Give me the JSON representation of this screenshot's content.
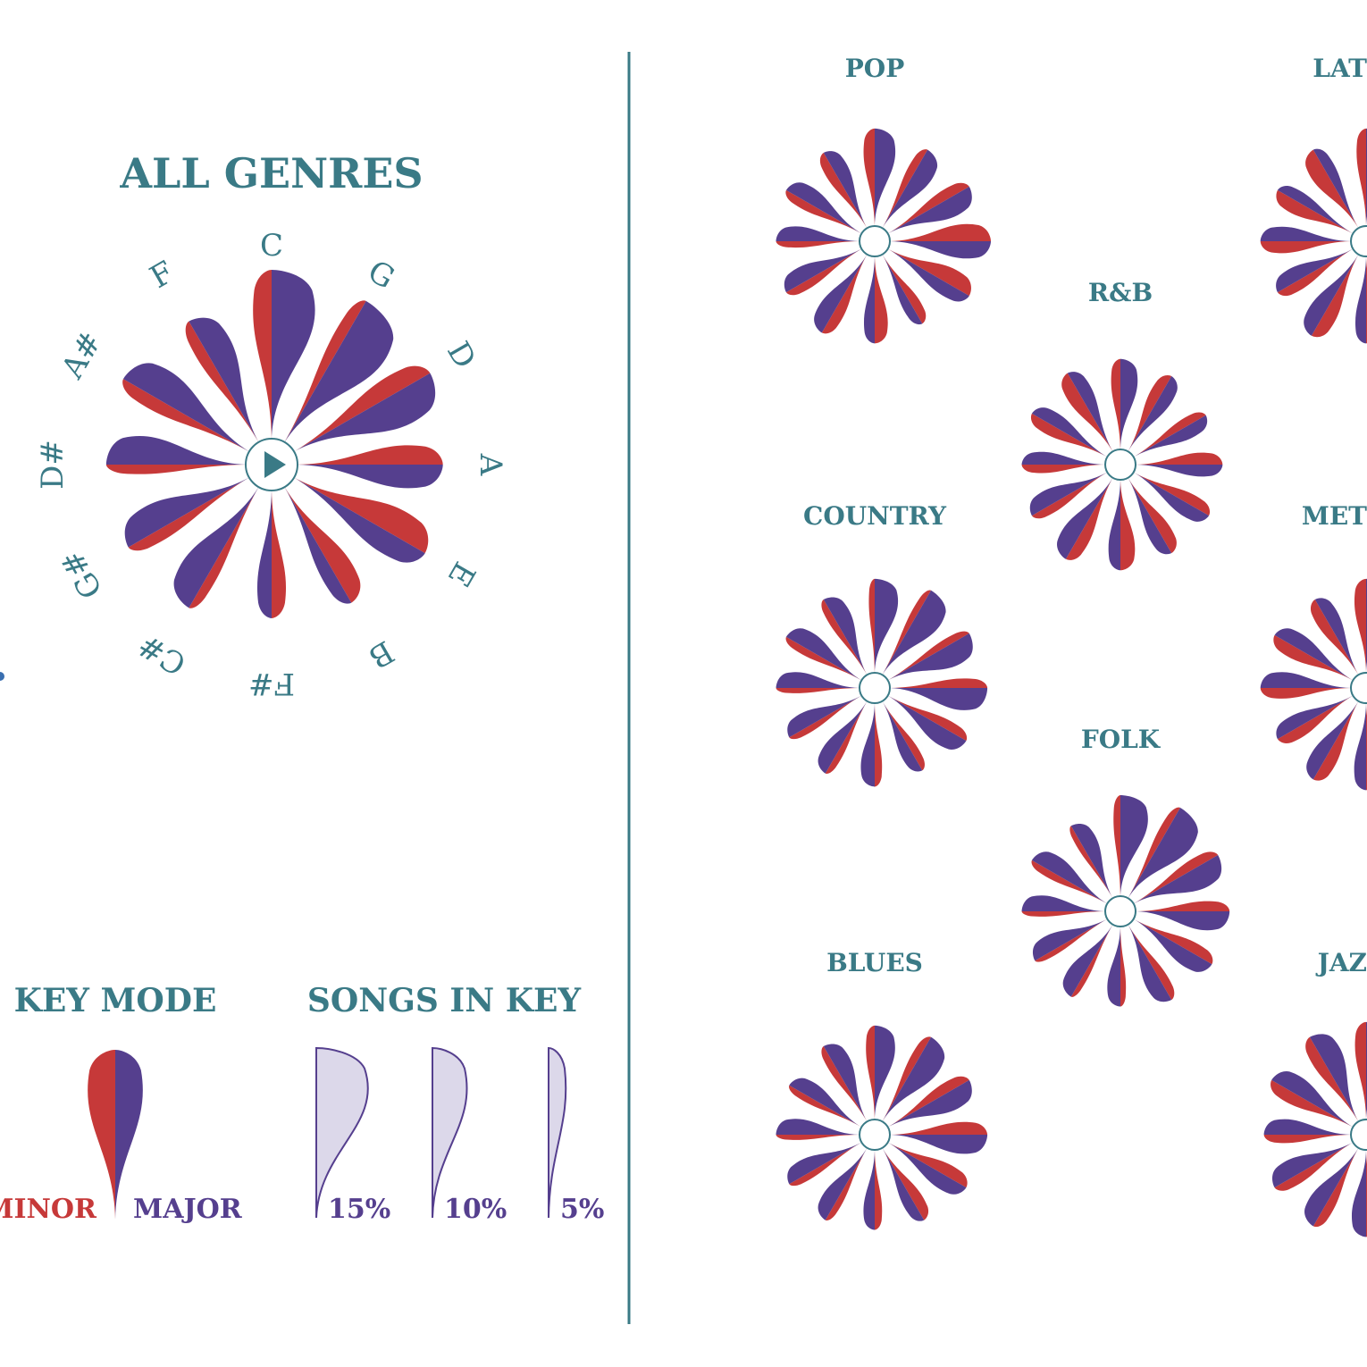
{
  "colors": {
    "teal": "#3a7a86",
    "minor": "#c63939",
    "major": "#553f8e",
    "legend_fill": "#dcd8ea",
    "divider": "#3a7a86"
  },
  "main": {
    "title": "ALL GENRES",
    "play_icon": "play-icon"
  },
  "legend": {
    "key_mode_title": "KEY MODE",
    "minor_label": "MINOR",
    "major_label": "MAJOR",
    "songs_in_key_title": "SONGS IN KEY",
    "sizes": [
      {
        "value": 15,
        "label": "15%"
      },
      {
        "value": 10,
        "label": "10%"
      },
      {
        "value": 5,
        "label": "5%"
      }
    ]
  },
  "genres": [
    {
      "label": "POP"
    },
    {
      "label": "LAT"
    },
    {
      "label": "R&B"
    },
    {
      "label": "COUNTRY"
    },
    {
      "label": "MET"
    },
    {
      "label": "FOLK"
    },
    {
      "label": "BLUES"
    },
    {
      "label": "JAZ"
    }
  ],
  "chart_data": [
    {
      "type": "radial-petal",
      "title": "ALL GENRES",
      "categories": [
        "C",
        "G",
        "D",
        "A",
        "E",
        "B",
        "F#",
        "C#",
        "G#",
        "D#",
        "A#",
        "F"
      ],
      "total_pct": [
        13,
        12,
        11,
        9,
        10,
        7,
        6,
        8,
        8,
        8,
        9,
        8
      ],
      "minor_share": [
        0.3,
        0.2,
        0.35,
        0.45,
        0.55,
        0.6,
        0.5,
        0.25,
        0.3,
        0.25,
        0.3,
        0.3
      ]
    },
    {
      "type": "radial-petal",
      "title": "POP",
      "categories": [
        "C",
        "G",
        "D",
        "A",
        "E",
        "B",
        "F#",
        "C#",
        "G#",
        "D#",
        "A#",
        "F"
      ],
      "total_pct": [
        12,
        10,
        11,
        13,
        11,
        7,
        9,
        10,
        9,
        8,
        9,
        9
      ],
      "minor_share": [
        0.35,
        0.3,
        0.35,
        0.5,
        0.55,
        0.5,
        0.55,
        0.4,
        0.35,
        0.3,
        0.35,
        0.4
      ]
    },
    {
      "type": "radial-petal",
      "title": "LAT",
      "categories": [
        "C",
        "G",
        "D",
        "A",
        "E",
        "B",
        "F#",
        "C#",
        "G#",
        "D#",
        "A#",
        "F"
      ],
      "total_pct": [
        12,
        10,
        10,
        10,
        11,
        8,
        9,
        11,
        9,
        10,
        9,
        10
      ],
      "minor_share": [
        0.3,
        0.35,
        0.35,
        0.5,
        0.5,
        0.5,
        0.55,
        0.45,
        0.4,
        0.45,
        0.55,
        0.6
      ]
    },
    {
      "type": "radial-petal",
      "title": "R&B",
      "categories": [
        "C",
        "G",
        "D",
        "A",
        "E",
        "B",
        "F#",
        "C#",
        "G#",
        "D#",
        "A#",
        "F"
      ],
      "total_pct": [
        10,
        9,
        8,
        9,
        9,
        9,
        10,
        11,
        9,
        8,
        9,
        10
      ],
      "minor_share": [
        0.35,
        0.45,
        0.4,
        0.5,
        0.45,
        0.5,
        0.55,
        0.4,
        0.35,
        0.4,
        0.45,
        0.5
      ]
    },
    {
      "type": "radial-petal",
      "title": "COUNTRY",
      "categories": [
        "C",
        "G",
        "D",
        "A",
        "E",
        "B",
        "F#",
        "C#",
        "G#",
        "D#",
        "A#",
        "F"
      ],
      "total_pct": [
        11,
        12,
        11,
        12,
        10,
        7,
        8,
        8,
        8,
        8,
        9,
        9
      ],
      "minor_share": [
        0.2,
        0.2,
        0.25,
        0.3,
        0.35,
        0.4,
        0.35,
        0.3,
        0.3,
        0.25,
        0.3,
        0.3
      ]
    },
    {
      "type": "radial-petal",
      "title": "MET",
      "categories": [
        "C",
        "G",
        "D",
        "A",
        "E",
        "B",
        "F#",
        "C#",
        "G#",
        "D#",
        "A#",
        "F"
      ],
      "total_pct": [
        11,
        10,
        10,
        11,
        12,
        9,
        9,
        10,
        9,
        10,
        10,
        9
      ],
      "minor_share": [
        0.4,
        0.4,
        0.45,
        0.5,
        0.55,
        0.5,
        0.5,
        0.45,
        0.45,
        0.4,
        0.45,
        0.45
      ]
    },
    {
      "type": "radial-petal",
      "title": "FOLK",
      "categories": [
        "C",
        "G",
        "D",
        "A",
        "E",
        "B",
        "F#",
        "C#",
        "G#",
        "D#",
        "A#",
        "F"
      ],
      "total_pct": [
        13,
        14,
        12,
        11,
        10,
        9,
        7,
        8,
        8,
        8,
        9,
        8
      ],
      "minor_share": [
        0.2,
        0.2,
        0.3,
        0.35,
        0.4,
        0.35,
        0.3,
        0.25,
        0.25,
        0.25,
        0.3,
        0.25
      ]
    },
    {
      "type": "radial-petal",
      "title": "BLUES",
      "categories": [
        "C",
        "G",
        "D",
        "A",
        "E",
        "B",
        "F#",
        "C#",
        "G#",
        "D#",
        "A#",
        "F"
      ],
      "total_pct": [
        11,
        12,
        11,
        12,
        10,
        8,
        7,
        8,
        8,
        8,
        8,
        9
      ],
      "minor_share": [
        0.3,
        0.25,
        0.35,
        0.4,
        0.45,
        0.5,
        0.4,
        0.3,
        0.3,
        0.25,
        0.3,
        0.3
      ]
    },
    {
      "type": "radial-petal",
      "title": "JAZ",
      "categories": [
        "C",
        "G",
        "D",
        "A",
        "E",
        "B",
        "F#",
        "C#",
        "G#",
        "D#",
        "A#",
        "F"
      ],
      "total_pct": [
        12,
        10,
        10,
        10,
        9,
        8,
        9,
        10,
        10,
        9,
        11,
        12
      ],
      "minor_share": [
        0.35,
        0.3,
        0.35,
        0.4,
        0.4,
        0.4,
        0.4,
        0.35,
        0.35,
        0.35,
        0.4,
        0.35
      ]
    }
  ]
}
